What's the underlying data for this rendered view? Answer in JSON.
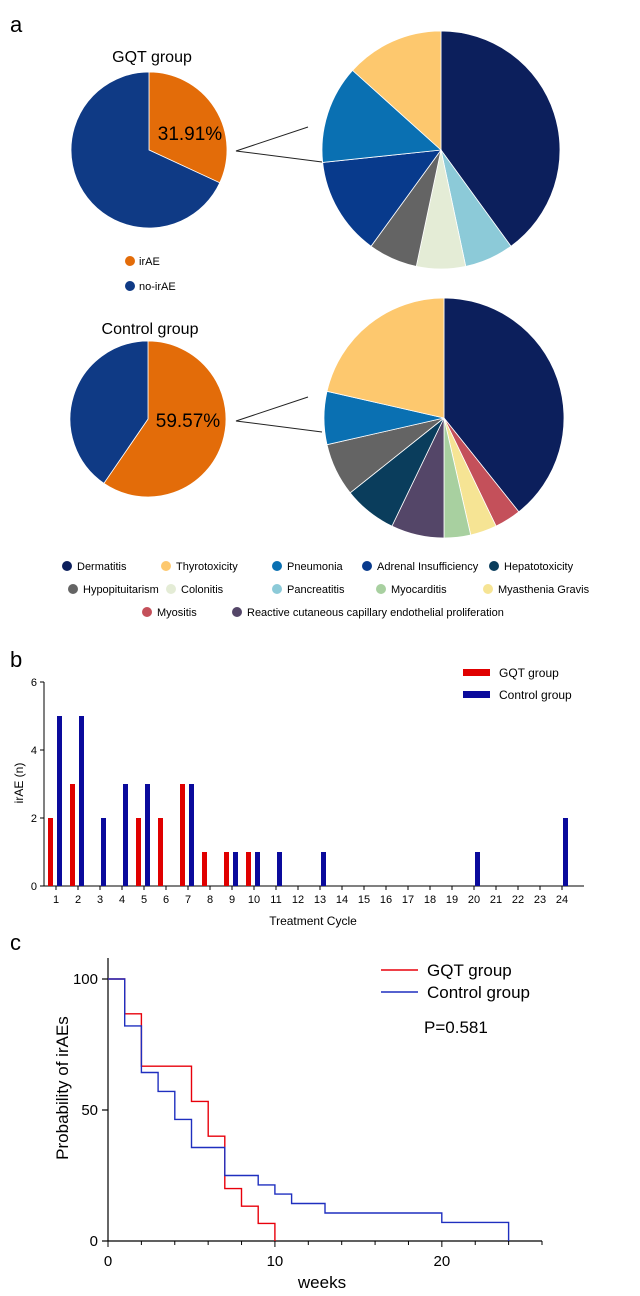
{
  "panels": {
    "a": "a",
    "b": "b",
    "c": "c"
  },
  "colors": {
    "irAE": "#e36c09",
    "no_irAE": "#0f3a85",
    "gqt": "#e00000",
    "control": "#0a0a9c",
    "km_gqt": "#e8000b",
    "km_control": "#1f2fbf",
    "dermatitis": "#0c1f5c",
    "thyrotoxicity": "#fdc86e",
    "pneumonia": "#0a70b2",
    "adrenal_insufficiency": "#083a8c",
    "hepatotoxicity": "#0a3d5c",
    "hypopituitarism": "#646464",
    "colonitis": "#e4ecd6",
    "pancreatitis": "#8ccad8",
    "myocarditis": "#a8d0a0",
    "myasthenia_gravis": "#f6e494",
    "myositis": "#c4505a",
    "reactive_cutaneous": "#544668"
  },
  "chart_data": [
    {
      "type": "pie",
      "title": "GQT group",
      "slices": [
        {
          "label": "irAE",
          "value": 31.91,
          "color_key": "irAE"
        },
        {
          "label": "no-irAE",
          "value": 68.09,
          "color_key": "no_irAE"
        }
      ],
      "data_label": "31.91%",
      "legend": [
        {
          "label": "irAE",
          "color_key": "irAE"
        },
        {
          "label": "no-irAE",
          "color_key": "no_irAE"
        }
      ]
    },
    {
      "type": "pie",
      "title": "",
      "breakdown_of": "GQT group irAE",
      "slices": [
        {
          "label": "Dermatitis",
          "value": 6,
          "color_key": "dermatitis"
        },
        {
          "label": "Pancreatitis",
          "value": 1,
          "color_key": "pancreatitis"
        },
        {
          "label": "Colonitis",
          "value": 1,
          "color_key": "colonitis"
        },
        {
          "label": "Hypopituitarism",
          "value": 1,
          "color_key": "hypopituitarism"
        },
        {
          "label": "Adrenal Insufficiency",
          "value": 2,
          "color_key": "adrenal_insufficiency"
        },
        {
          "label": "Pneumonia",
          "value": 2,
          "color_key": "pneumonia"
        },
        {
          "label": "Thyrotoxicity",
          "value": 2,
          "color_key": "thyrotoxicity"
        }
      ]
    },
    {
      "type": "pie",
      "title": "Control group",
      "slices": [
        {
          "label": "irAE",
          "value": 59.57,
          "color_key": "irAE"
        },
        {
          "label": "no-irAE",
          "value": 40.43,
          "color_key": "no_irAE"
        }
      ],
      "data_label": "59.57%"
    },
    {
      "type": "pie",
      "title": "",
      "breakdown_of": "Control group irAE",
      "slices": [
        {
          "label": "Dermatitis",
          "value": 11,
          "color_key": "dermatitis"
        },
        {
          "label": "Myositis",
          "value": 1,
          "color_key": "myositis"
        },
        {
          "label": "Myasthenia Gravis",
          "value": 1,
          "color_key": "myasthenia_gravis"
        },
        {
          "label": "Myocarditis",
          "value": 1,
          "color_key": "myocarditis"
        },
        {
          "label": "Reactive cutaneous capillary endothelial proliferation",
          "value": 2,
          "color_key": "reactive_cutaneous"
        },
        {
          "label": "Hepatotoxicity",
          "value": 2,
          "color_key": "hepatotoxicity"
        },
        {
          "label": "Hypopituitarism",
          "value": 2,
          "color_key": "hypopituitarism"
        },
        {
          "label": "Pneumonia",
          "value": 2,
          "color_key": "pneumonia"
        },
        {
          "label": "Thyrotoxicity",
          "value": 6,
          "color_key": "thyrotoxicity"
        }
      ]
    },
    {
      "type": "bar",
      "xlabel": "Treatment Cycle",
      "ylabel": "irAE (n)",
      "ylim": [
        0,
        6
      ],
      "yticks": [
        0,
        2,
        4,
        6
      ],
      "categories": [
        "1",
        "2",
        "3",
        "4",
        "5",
        "6",
        "7",
        "8",
        "9",
        "10",
        "11",
        "12",
        "13",
        "14",
        "15",
        "16",
        "17",
        "18",
        "19",
        "20",
        "21",
        "22",
        "23",
        "24"
      ],
      "series": [
        {
          "name": "GQT group",
          "color_key": "gqt",
          "values": [
            2,
            3,
            0,
            0,
            2,
            2,
            3,
            1,
            1,
            1,
            0,
            0,
            0,
            0,
            0,
            0,
            0,
            0,
            0,
            0,
            0,
            0,
            0,
            0
          ]
        },
        {
          "name": "Control group",
          "color_key": "control",
          "values": [
            5,
            5,
            2,
            3,
            3,
            0,
            3,
            0,
            1,
            1,
            1,
            0,
            1,
            0,
            0,
            0,
            0,
            0,
            0,
            1,
            0,
            0,
            0,
            2
          ]
        }
      ],
      "legend_position": "top-right"
    },
    {
      "type": "line",
      "step": true,
      "xlabel": "weeks",
      "ylabel": "Probability of irAEs",
      "xlim": [
        0,
        26
      ],
      "ylim": [
        0,
        100
      ],
      "xticks": [
        0,
        10,
        20
      ],
      "yticks": [
        0,
        50,
        100
      ],
      "annotation": "P=0.581",
      "legend_position": "top-right",
      "series": [
        {
          "name": "GQT group",
          "color_key": "km_gqt",
          "x": [
            0,
            1,
            2,
            5,
            6,
            7,
            8,
            9,
            10
          ],
          "y": [
            100,
            86.7,
            66.7,
            53.3,
            40,
            20,
            13.3,
            6.7,
            0
          ]
        },
        {
          "name": "Control group",
          "color_key": "km_control",
          "x": [
            0,
            1,
            2,
            3,
            4,
            5,
            7,
            9,
            10,
            11,
            13,
            20,
            24
          ],
          "y": [
            100,
            82.1,
            64.3,
            57.1,
            46.4,
            35.7,
            25,
            21.4,
            17.9,
            14.3,
            10.7,
            7.1,
            0
          ]
        }
      ]
    }
  ],
  "legend_a": [
    [
      {
        "label": "Dermatitis",
        "color_key": "dermatitis"
      },
      {
        "label": "Thyrotoxicity",
        "color_key": "thyrotoxicity"
      },
      {
        "label": "Pneumonia",
        "color_key": "pneumonia"
      },
      {
        "label": "Adrenal Insufficiency",
        "color_key": "adrenal_insufficiency"
      },
      {
        "label": "Hepatotoxicity",
        "color_key": "hepatotoxicity"
      }
    ],
    [
      {
        "label": "Hypopituitarism",
        "color_key": "hypopituitarism"
      },
      {
        "label": "Colonitis",
        "color_key": "colonitis"
      },
      {
        "label": "Pancreatitis",
        "color_key": "pancreatitis"
      },
      {
        "label": "Myocarditis",
        "color_key": "myocarditis"
      },
      {
        "label": "Myasthenia Gravis",
        "color_key": "myasthenia_gravis"
      }
    ],
    [
      {
        "label": "Myositis",
        "color_key": "myositis"
      },
      {
        "label": "Reactive cutaneous capillary endothelial proliferation",
        "color_key": "reactive_cutaneous"
      }
    ]
  ]
}
